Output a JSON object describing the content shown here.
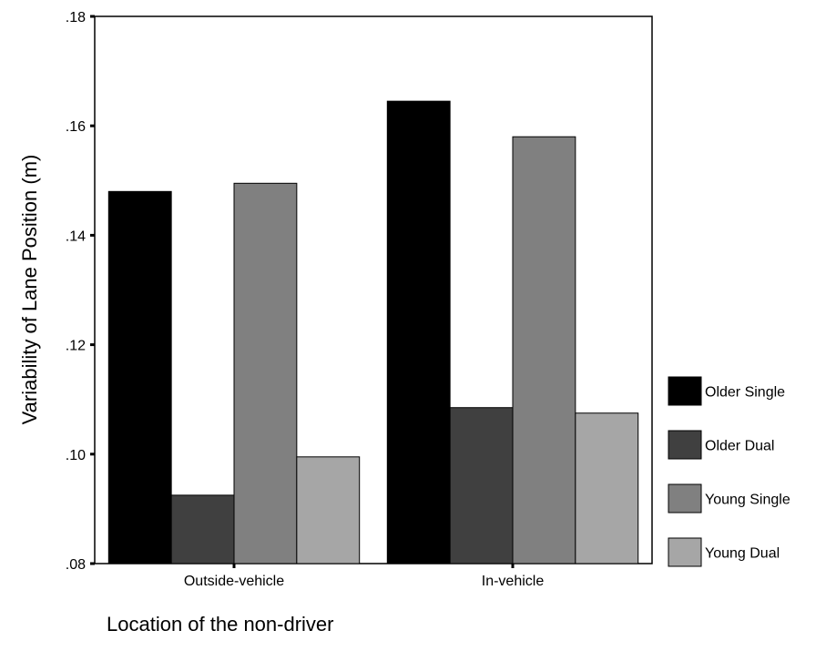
{
  "chart_data": {
    "type": "bar",
    "title": "",
    "xlabel": "Location of the non-driver",
    "ylabel": "Variability of Lane Position (m)",
    "ylim": [
      0.08,
      0.18
    ],
    "yticks": [
      0.08,
      0.1,
      0.12,
      0.14,
      0.16,
      0.18
    ],
    "ytick_labels": [
      ".08",
      ".10",
      ".12",
      ".14",
      ".16",
      ".18"
    ],
    "categories": [
      "Outside-vehicle",
      "In-vehicle"
    ],
    "series": [
      {
        "name": "Older Single",
        "color": "#000000",
        "values": [
          0.148,
          0.1645
        ]
      },
      {
        "name": "Older Dual",
        "color": "#404040",
        "values": [
          0.0925,
          0.1085
        ]
      },
      {
        "name": "Young Single",
        "color": "#808080",
        "values": [
          0.1495,
          0.158
        ]
      },
      {
        "name": "Young Dual",
        "color": "#a6a6a6",
        "values": [
          0.0995,
          0.1075
        ]
      }
    ],
    "legend_position": "right",
    "grid": false
  }
}
